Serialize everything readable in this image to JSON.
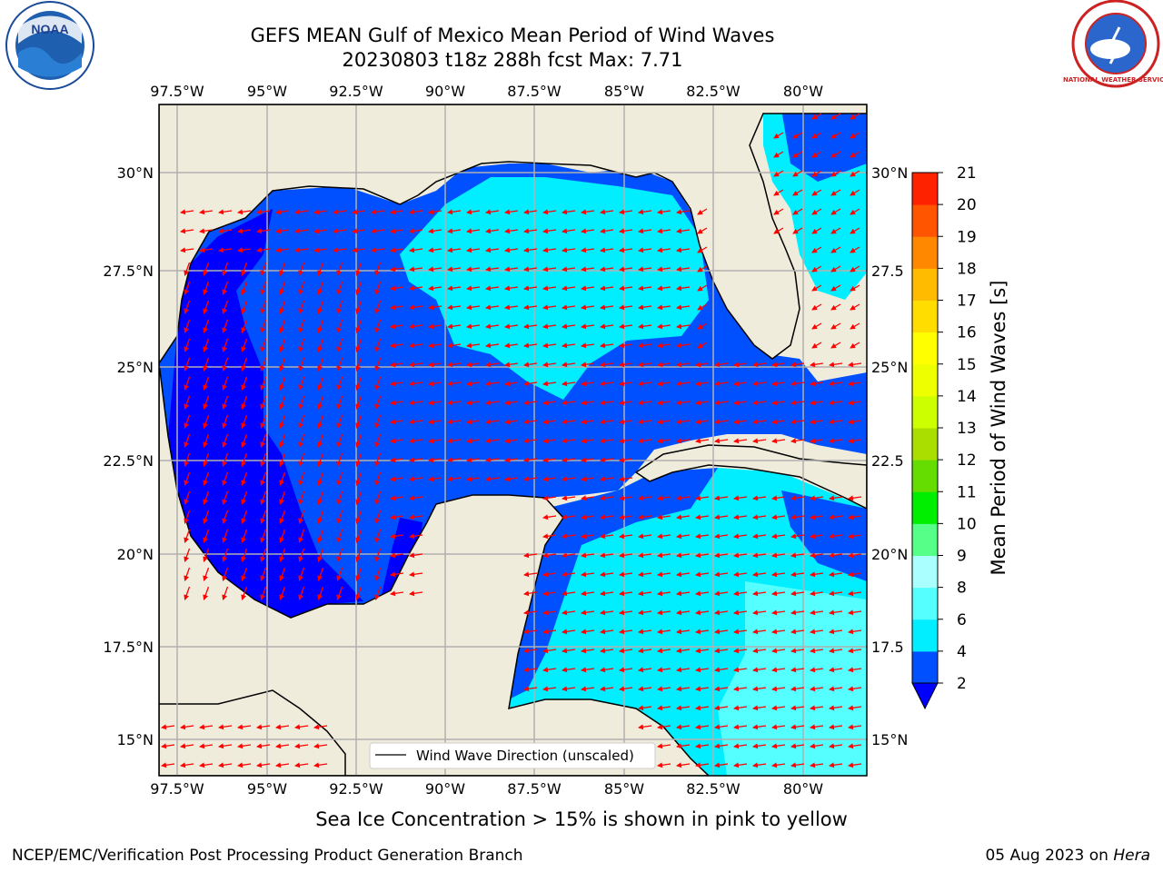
{
  "title": {
    "line1": "GEFS MEAN Gulf of Mexico Mean Period of Wind Waves",
    "line2": "20230803 t18z 288h fcst   Max: 7.71"
  },
  "logos": {
    "left": {
      "icon": "noaa-logo",
      "text": "NOAA"
    },
    "right": {
      "icon": "nws-logo",
      "text": "NATIONAL WEATHER SERVICE"
    }
  },
  "map": {
    "lon_ticks": [
      "97.5°W",
      "95°W",
      "92.5°W",
      "90°W",
      "87.5°W",
      "85°W",
      "82.5°W",
      "80°W"
    ],
    "lat_ticks_left": [
      "30°N",
      "27.5°N",
      "25°N",
      "22.5°N",
      "20°N",
      "17.5°N",
      "15°N"
    ],
    "lat_ticks_right": [
      "30°N",
      "27.5",
      "25°N",
      "22.5",
      "20°N",
      "17.5",
      "15°N"
    ],
    "legend_label": "Wind Wave Direction (unscaled)",
    "colors": {
      "land": "#efecdc",
      "coast": "#000000",
      "grid": "#b0b0b0",
      "arrow": "#ff0000"
    }
  },
  "colorbar": {
    "label": "Mean Period of Wind Waves [s]",
    "ticks": [
      "2",
      "4",
      "6",
      "8",
      "9",
      "10",
      "11",
      "12",
      "13",
      "14",
      "15",
      "16",
      "17",
      "18",
      "19",
      "20",
      "21"
    ],
    "colors": [
      "#0050ff",
      "#00eeff",
      "#55ffff",
      "#aaffff",
      "#55ff88",
      "#00ee00",
      "#66dd00",
      "#aadd00",
      "#ccff00",
      "#eeff00",
      "#ffff00",
      "#ffdd00",
      "#ffbb00",
      "#ff8800",
      "#ff5500",
      "#ff2200"
    ],
    "extend_color": "#0000ff"
  },
  "footer": {
    "ice_note": "Sea Ice Concentration > 15% is shown in pink to yellow",
    "credit": "NCEP/EMC/Verification Post Processing Product Generation Branch",
    "date": "05 Aug 2023 on ",
    "host": "Hera"
  }
}
